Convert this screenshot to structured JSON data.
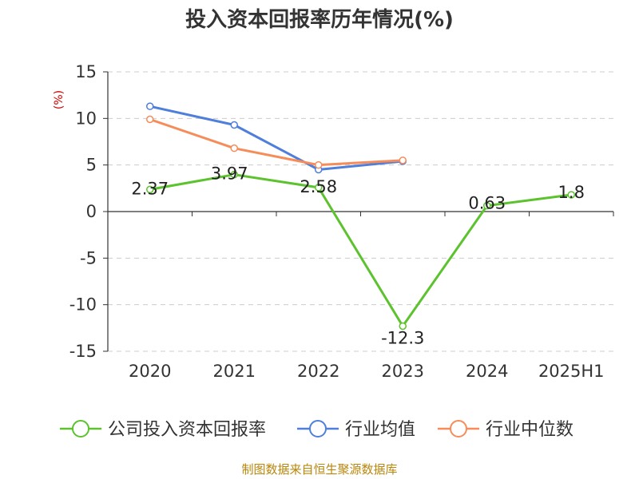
{
  "chart_data": {
    "type": "line",
    "title": "投入资本回报率历年情况(%)",
    "ylabel": "(%)",
    "xlabel": "",
    "categories": [
      "2020",
      "2021",
      "2022",
      "2023",
      "2024",
      "2025H1"
    ],
    "ylim": [
      -15,
      15
    ],
    "yticks": [
      15,
      10,
      5,
      0,
      -5,
      -10,
      -15
    ],
    "grid": "horizontal-dashed",
    "legend_position": "bottom",
    "series": [
      {
        "name": "公司投入资本回报率",
        "color": "#5cc22e",
        "values": [
          2.37,
          3.97,
          2.58,
          -12.3,
          0.63,
          1.8
        ],
        "labels": [
          "2.37",
          "3.97",
          "2.58",
          "-12.3",
          "0.63",
          "1.8"
        ]
      },
      {
        "name": "行业均值",
        "color": "#4f7fdb",
        "values": [
          11.3,
          9.3,
          4.5,
          5.4,
          null,
          null
        ]
      },
      {
        "name": "行业中位数",
        "color": "#f58c5a",
        "values": [
          9.9,
          6.8,
          5.0,
          5.5,
          null,
          null
        ]
      }
    ],
    "source": "制图数据来自恒生聚源数据库"
  }
}
